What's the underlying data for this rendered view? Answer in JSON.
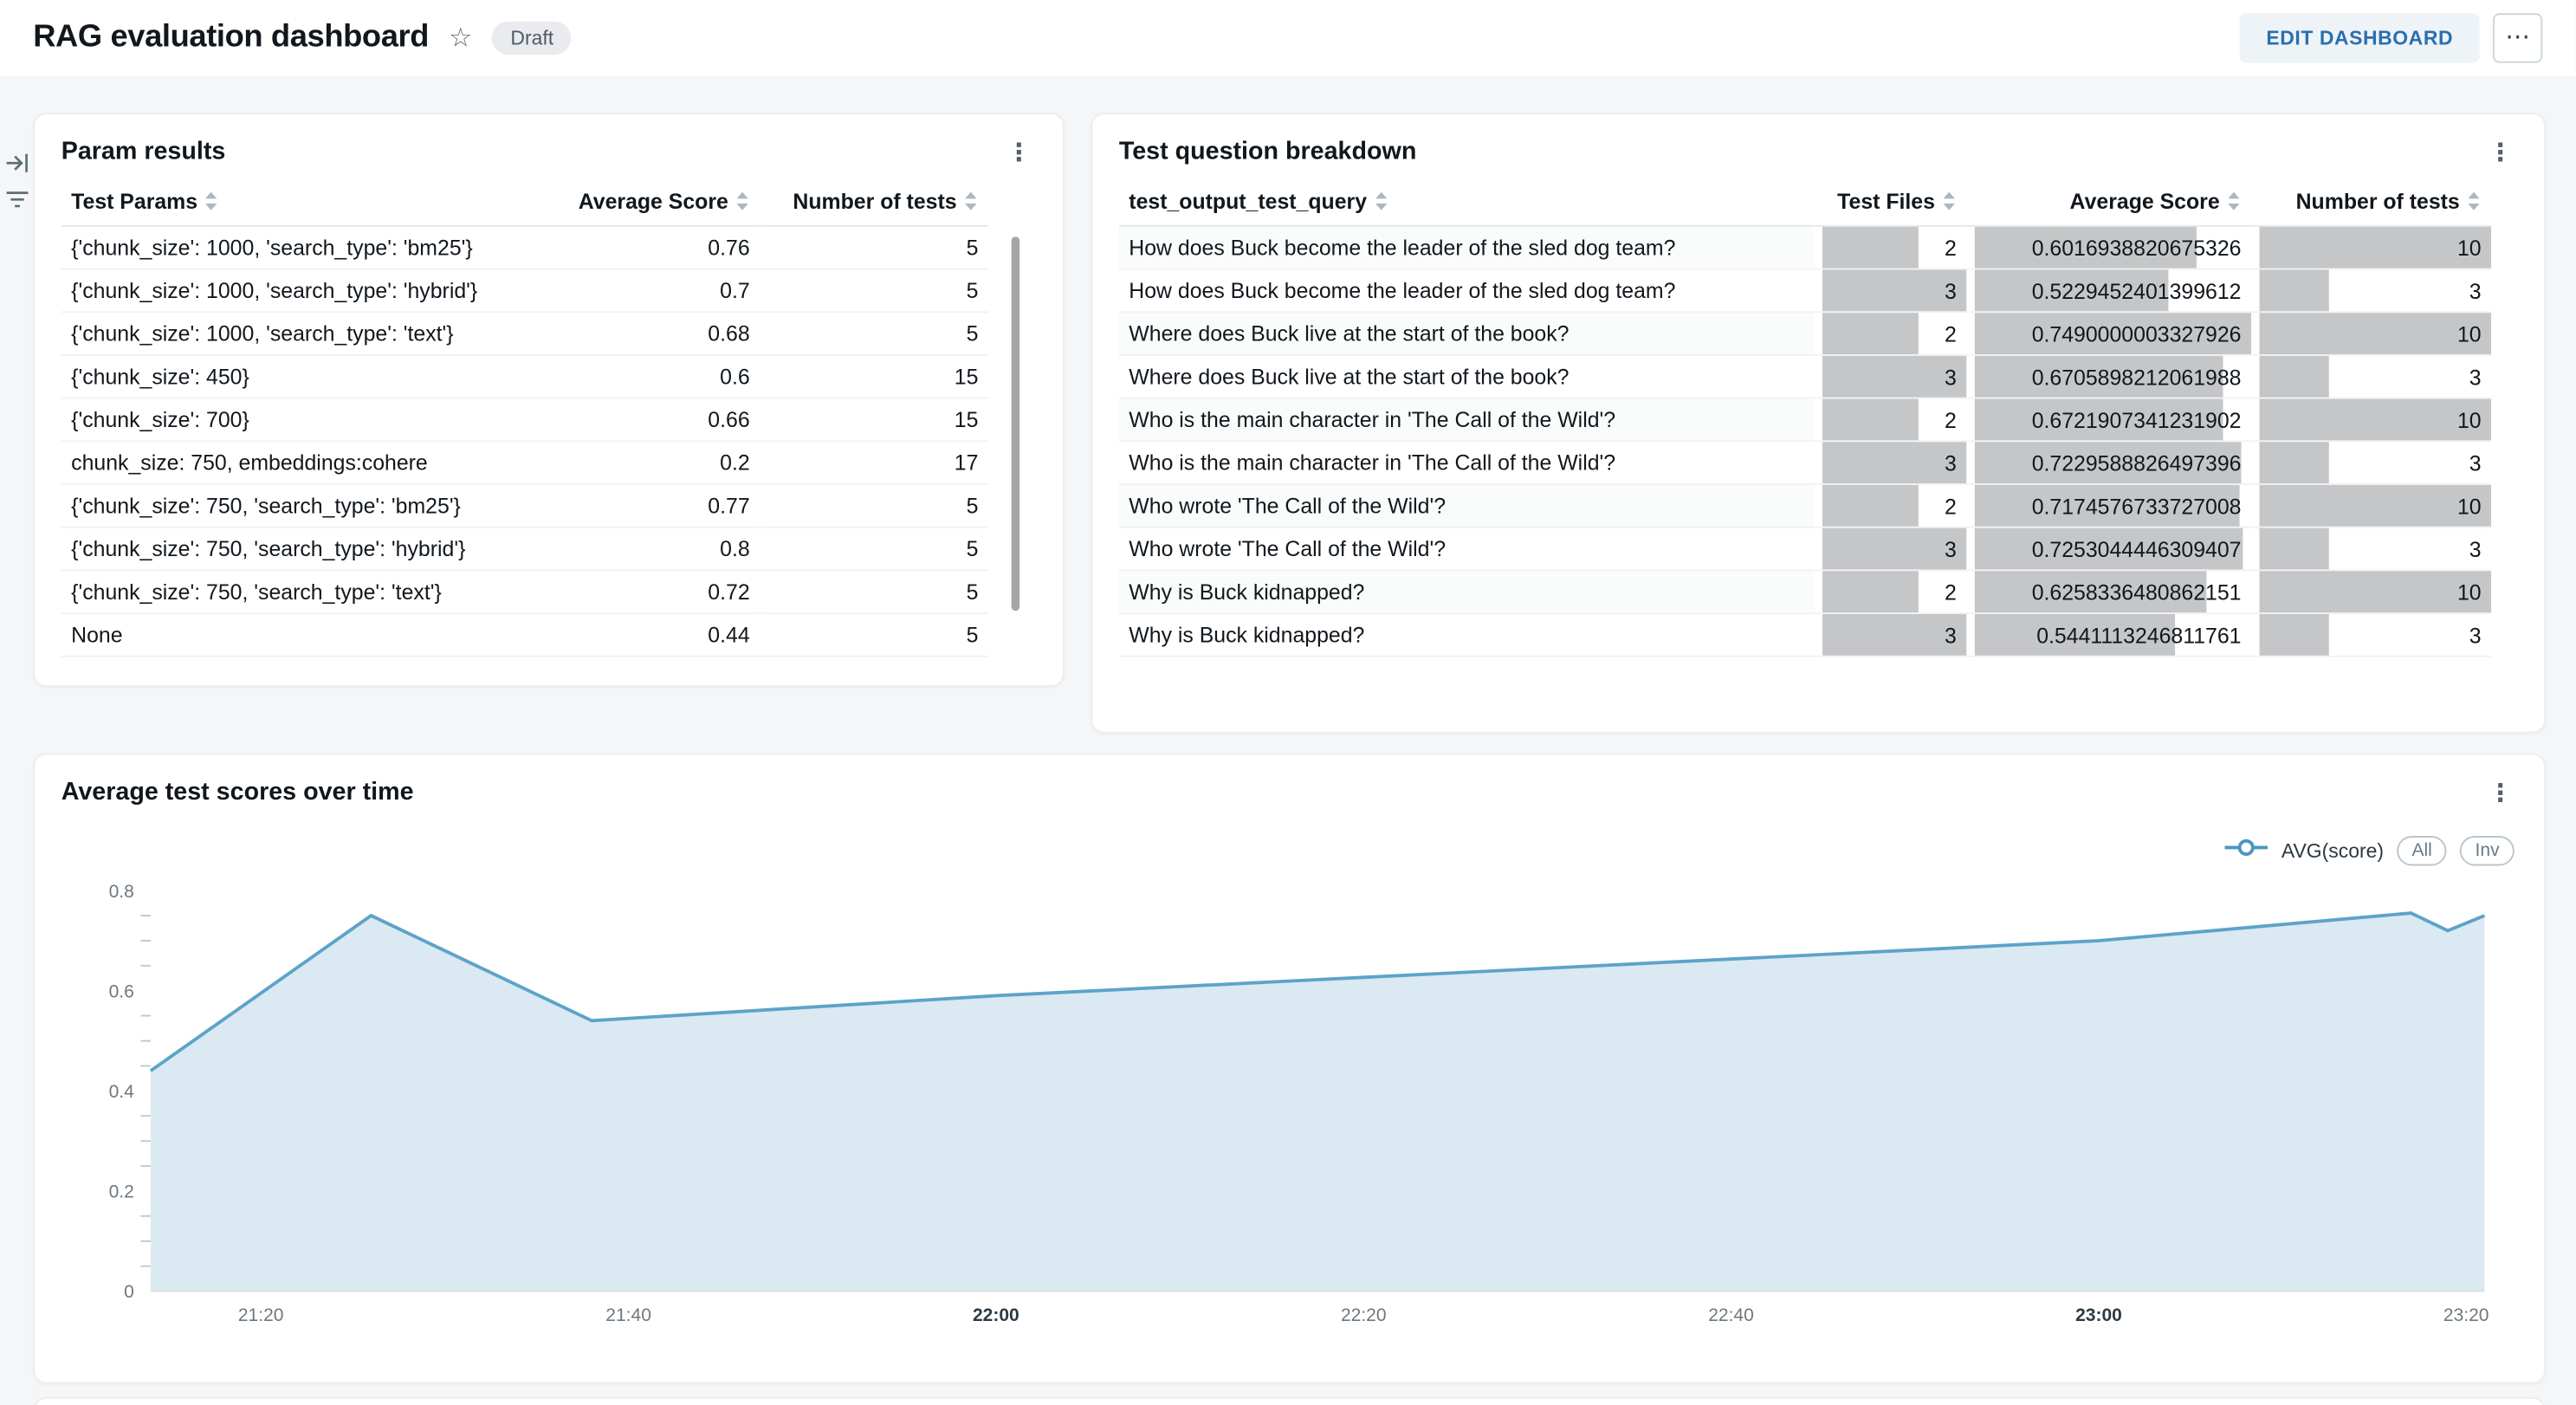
{
  "header": {
    "title": "RAG evaluation dashboard",
    "badge": "Draft",
    "edit_button": "EDIT DASHBOARD"
  },
  "icons": {
    "star": "☆",
    "kebab": "⋮",
    "more": "⋯"
  },
  "param_results": {
    "title": "Param results",
    "columns": [
      "Test Params",
      "Average Score",
      "Number of tests"
    ],
    "rows": [
      [
        "{'chunk_size': 1000, 'search_type': 'bm25'}",
        "0.76",
        "5"
      ],
      [
        "{'chunk_size': 1000, 'search_type': 'hybrid'}",
        "0.7",
        "5"
      ],
      [
        "{'chunk_size': 1000, 'search_type': 'text'}",
        "0.68",
        "5"
      ],
      [
        "{'chunk_size': 450}",
        "0.6",
        "15"
      ],
      [
        "{'chunk_size': 700}",
        "0.66",
        "15"
      ],
      [
        "chunk_size: 750, embeddings:cohere",
        "0.2",
        "17"
      ],
      [
        "{'chunk_size': 750, 'search_type': 'bm25'}",
        "0.77",
        "5"
      ],
      [
        "{'chunk_size': 750, 'search_type': 'hybrid'}",
        "0.8",
        "5"
      ],
      [
        "{'chunk_size': 750, 'search_type': 'text'}",
        "0.72",
        "5"
      ],
      [
        "None",
        "0.44",
        "5"
      ]
    ]
  },
  "question_breakdown": {
    "title": "Test question breakdown",
    "columns": [
      "test_output_test_query",
      "Test Files",
      "Average Score",
      "Number of tests"
    ],
    "bar_color": "#c5c6c7",
    "max": {
      "files": 3,
      "score": 0.7490000003327926,
      "tests": 10
    },
    "rows": [
      {
        "query": "How does Buck become the leader of the sled dog team?",
        "files": "2",
        "score": "0.6016938820675326",
        "tests": "10"
      },
      {
        "query": "How does Buck become the leader of the sled dog team?",
        "files": "3",
        "score": "0.5229452401399612",
        "tests": "3"
      },
      {
        "query": "Where does Buck live at the start of the book?",
        "files": "2",
        "score": "0.7490000003327926",
        "tests": "10"
      },
      {
        "query": "Where does Buck live at the start of the book?",
        "files": "3",
        "score": "0.6705898212061988",
        "tests": "3"
      },
      {
        "query": "Who is the main character in 'The Call of the Wild'?",
        "files": "2",
        "score": "0.6721907341231902",
        "tests": "10"
      },
      {
        "query": "Who is the main character in 'The Call of the Wild'?",
        "files": "3",
        "score": "0.7229588826497396",
        "tests": "3"
      },
      {
        "query": "Who wrote 'The Call of the Wild'?",
        "files": "2",
        "score": "0.7174576733727008",
        "tests": "10"
      },
      {
        "query": "Who wrote 'The Call of the Wild'?",
        "files": "3",
        "score": "0.7253044446309407",
        "tests": "3"
      },
      {
        "query": "Why is Buck kidnapped?",
        "files": "2",
        "score": "0.6258336480862151",
        "tests": "10"
      },
      {
        "query": "Why is Buck kidnapped?",
        "files": "3",
        "score": "0.5441113246811761",
        "tests": "3"
      }
    ]
  },
  "chart_panel": {
    "title": "Average test scores over time",
    "legend_series": "AVG(score)",
    "toggle_all": "All",
    "toggle_inv": "Inv"
  },
  "chart_data": {
    "type": "area",
    "title": "Average test scores over time",
    "series": [
      {
        "name": "AVG(score)",
        "points": [
          {
            "x": "21:14",
            "y": 0.44
          },
          {
            "x": "21:26",
            "y": 0.75
          },
          {
            "x": "21:38",
            "y": 0.54
          },
          {
            "x": "22:00",
            "y": 0.59
          },
          {
            "x": "22:30",
            "y": 0.645
          },
          {
            "x": "23:00",
            "y": 0.7
          },
          {
            "x": "23:17",
            "y": 0.755
          },
          {
            "x": "23:19",
            "y": 0.72
          },
          {
            "x": "23:21",
            "y": 0.75
          }
        ]
      }
    ],
    "x_domain": [
      "21:14",
      "23:21"
    ],
    "ylim": [
      0,
      0.8
    ],
    "y_ticks": [
      0,
      0.2,
      0.4,
      0.6,
      0.8
    ],
    "y_minor_step": 0.05,
    "x_ticks": [
      {
        "label": "21:20",
        "bold": false
      },
      {
        "label": "21:40",
        "bold": false
      },
      {
        "label": "22:00",
        "bold": true
      },
      {
        "label": "22:20",
        "bold": false
      },
      {
        "label": "22:40",
        "bold": false
      },
      {
        "label": "23:00",
        "bold": true
      },
      {
        "label": "23:20",
        "bold": false
      }
    ],
    "grid": false,
    "legend_position": "top-right",
    "line_color": "#5da3c9",
    "fill_color": "#dbe9f2"
  }
}
